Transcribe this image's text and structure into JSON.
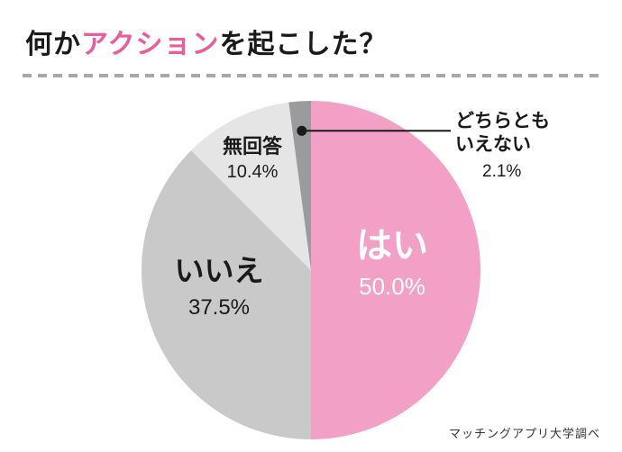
{
  "title": {
    "prefix": "何か",
    "highlight": "アクション",
    "suffix": "を起こした？"
  },
  "footer": {
    "credit": "マッチングアプリ大学調べ"
  },
  "colors": {
    "accent_pink": "#e95d9b",
    "divider_gray": "#a8a8a8",
    "callout_black": "#1a1a1a"
  },
  "chart_data": {
    "type": "pie",
    "title": "何かアクションを起こした？",
    "direction": "clockwise",
    "start_angle_deg": 0,
    "legend_position": "none",
    "slices": [
      {
        "label": "はい",
        "value": 50.0,
        "percent_text": "50.0%",
        "color": "#f2a0c6",
        "text_color": "#ffffff"
      },
      {
        "label": "いいえ",
        "value": 37.5,
        "percent_text": "37.5%",
        "color": "#c9c9c9",
        "text_color": "#1a1a1a"
      },
      {
        "label": "無回答",
        "value": 10.4,
        "percent_text": "10.4%",
        "color": "#e5e5e5",
        "text_color": "#1a1a1a"
      },
      {
        "label": "どちらともいえない",
        "value": 2.1,
        "percent_text": "2.1%",
        "color": "#9b9b9d",
        "text_color": "#1a1a1a"
      }
    ],
    "callout": {
      "label_lines": [
        "どちらとも",
        "いえない"
      ],
      "value_text": "2.1%"
    }
  }
}
